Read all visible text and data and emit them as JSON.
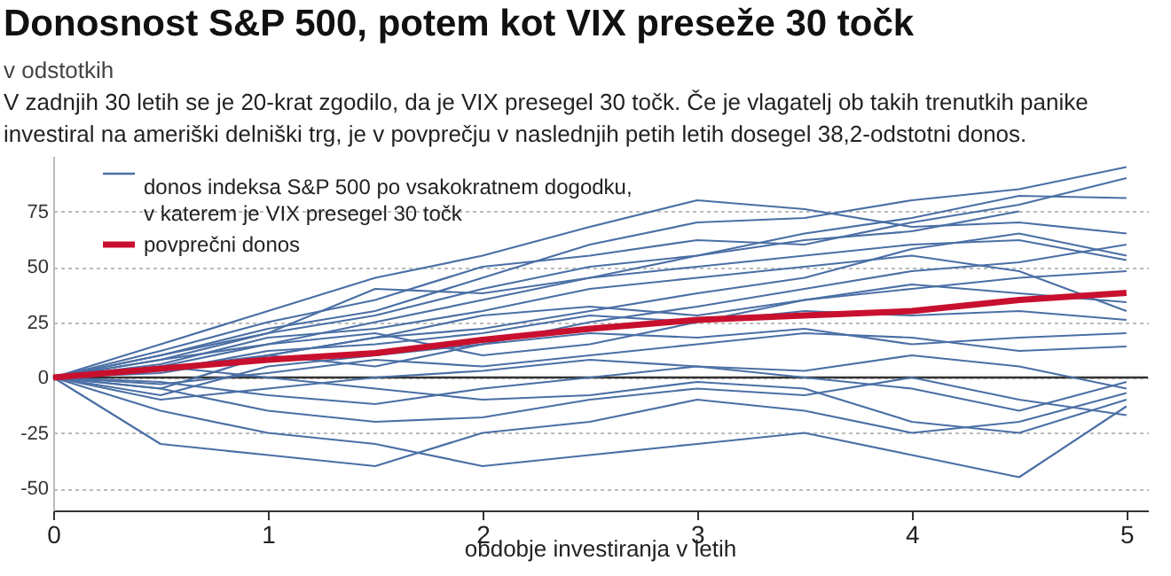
{
  "chart_data": {
    "type": "line",
    "title": "Donosnost S&P 500, potem kot VIX preseže 30 točk",
    "subtitle": "v odstotkih",
    "annotations": [
      "V zadnjih 30 letih se je 20-krat zgodilo, da je VIX presegel 30 točk. Če je vlagatelj ob takih trenutkih panike investiral na ameriški delniški trg, je v povprečju v naslednjih petih letih dosegel 38,2-odstotni donos."
    ],
    "xlabel": "obdobje investiranja v letih",
    "x": [
      0,
      0.5,
      1,
      1.5,
      2,
      2.5,
      3,
      3.5,
      4,
      4.5,
      5
    ],
    "xlim": [
      0,
      5.1
    ],
    "xticks": [
      0,
      1,
      2,
      3,
      4,
      5
    ],
    "ylim": [
      -60,
      100
    ],
    "yticks": [
      -50,
      -25,
      0,
      25,
      50,
      75
    ],
    "grid": "y",
    "legend": "top left",
    "line_style": "solid",
    "marker": "none",
    "ref_lines": [
      {
        "axis": "y",
        "value": 0,
        "color": "#333333"
      }
    ],
    "series": [
      {
        "name": "donos indeksa S&P 500 po vsakokratnem dogodku, v katerem je VIX presegel 30 točk",
        "color": "#4a6fa5",
        "values": [
          0,
          10,
          22,
          30,
          45,
          60,
          70,
          72,
          80,
          85,
          95
        ]
      },
      {
        "color": "#4a6fa5",
        "values": [
          0,
          12,
          25,
          35,
          50,
          55,
          62,
          60,
          70,
          78,
          90
        ]
      },
      {
        "color": "#4a6fa5",
        "values": [
          0,
          8,
          20,
          28,
          40,
          50,
          55,
          65,
          72,
          82,
          81
        ]
      },
      {
        "color": "#4a6fa5",
        "values": [
          0,
          15,
          30,
          45,
          55,
          68,
          80,
          76,
          68,
          70,
          65
        ]
      },
      {
        "color": "#4a6fa5",
        "values": [
          0,
          5,
          15,
          25,
          35,
          45,
          50,
          55,
          60,
          62,
          53
        ]
      },
      {
        "color": "#4a6fa5",
        "values": [
          0,
          -5,
          10,
          18,
          22,
          30,
          38,
          45,
          58,
          65,
          55
        ]
      },
      {
        "color": "#4a6fa5",
        "values": [
          0,
          3,
          12,
          15,
          20,
          28,
          25,
          35,
          42,
          38,
          34
        ]
      },
      {
        "color": "#4a6fa5",
        "values": [
          0,
          -8,
          5,
          10,
          15,
          20,
          18,
          22,
          15,
          18,
          20
        ]
      },
      {
        "color": "#4a6fa5",
        "values": [
          0,
          -3,
          2,
          8,
          5,
          10,
          15,
          20,
          18,
          12,
          14
        ]
      },
      {
        "color": "#4a6fa5",
        "values": [
          0,
          -10,
          -5,
          0,
          3,
          8,
          5,
          0,
          -5,
          -15,
          -2
        ]
      },
      {
        "color": "#4a6fa5",
        "values": [
          0,
          -30,
          -35,
          -40,
          -25,
          -20,
          -10,
          -15,
          -25,
          -20,
          -7
        ]
      },
      {
        "color": "#4a6fa5",
        "values": [
          0,
          -15,
          -25,
          -30,
          -40,
          -35,
          -30,
          -25,
          -35,
          -45,
          -13
        ]
      },
      {
        "color": "#4a6fa5",
        "values": [
          0,
          5,
          0,
          -5,
          -10,
          -8,
          -2,
          -5,
          -20,
          -25,
          -10
        ]
      },
      {
        "color": "#4a6fa5",
        "values": [
          0,
          8,
          15,
          20,
          10,
          15,
          25,
          30,
          28,
          30,
          26
        ]
      },
      {
        "color": "#4a6fa5",
        "values": [
          0,
          2,
          10,
          5,
          15,
          25,
          32,
          40,
          48,
          52,
          60
        ]
      },
      {
        "color": "#4a6fa5",
        "values": [
          0,
          6,
          18,
          22,
          30,
          40,
          45,
          50,
          55,
          48,
          30
        ]
      },
      {
        "color": "#4a6fa5",
        "values": [
          0,
          -2,
          -8,
          -12,
          -5,
          0,
          5,
          3,
          10,
          5,
          -5
        ]
      },
      {
        "color": "#4a6fa5",
        "values": [
          0,
          10,
          20,
          40,
          38,
          45,
          55,
          62,
          66,
          75,
          null
        ]
      },
      {
        "color": "#4a6fa5",
        "values": [
          0,
          4,
          10,
          18,
          28,
          32,
          28,
          35,
          40,
          45,
          48
        ]
      },
      {
        "color": "#4a6fa5",
        "values": [
          0,
          -5,
          -15,
          -20,
          -18,
          -10,
          -5,
          -8,
          0,
          -10,
          -17
        ]
      },
      {
        "name": "povprečni donos",
        "color": "#c8102e",
        "values": [
          0,
          4,
          8,
          11,
          17,
          22,
          26,
          28,
          30,
          35,
          38.2
        ]
      }
    ]
  }
}
